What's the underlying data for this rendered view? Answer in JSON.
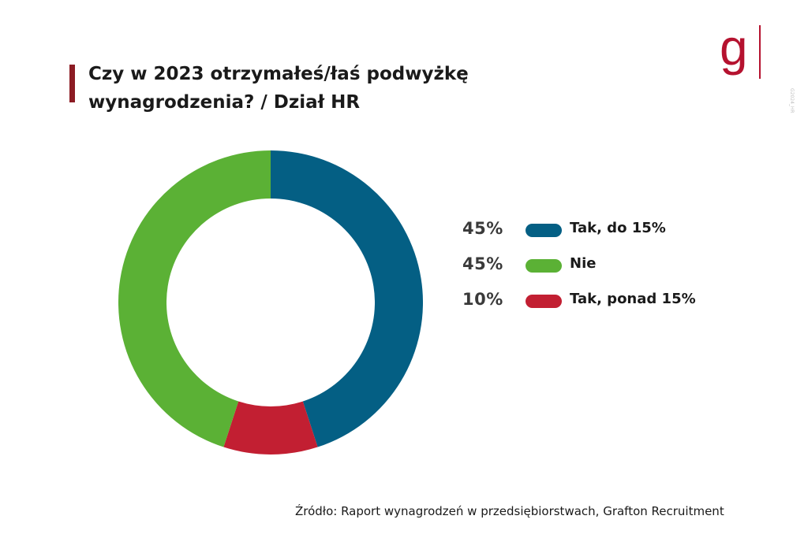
{
  "title": "Czy w 2023 otrzymałeś/łaś podwyżkę wynagrodzenia? / Dział HR",
  "logo": {
    "letter": "g",
    "color": "#b5122f"
  },
  "side_tag": "G2024_HR",
  "source": "Źródło: Raport wynagrodzeń w  przedsiębiorstwach, Grafton Recruitment",
  "chart_data": {
    "type": "pie",
    "donut": true,
    "title": "Czy w 2023 otrzymałeś/łaś podwyżkę wynagrodzenia? / Dział HR",
    "slices": [
      {
        "label": "Tak, do 15%",
        "value": 45,
        "display": "45%",
        "color": "#045f84"
      },
      {
        "label": "Tak, ponad 15%",
        "value": 10,
        "display": "10%",
        "color": "#c21f32"
      },
      {
        "label": "Nie",
        "value": 45,
        "display": "45%",
        "color": "#5bb135"
      }
    ],
    "legend": [
      {
        "pct": "45%",
        "label": "Tak, do 15%",
        "color": "#045f84"
      },
      {
        "pct": "45%",
        "label": "Nie",
        "color": "#5bb135"
      },
      {
        "pct": "10%",
        "label": "Tak, ponad 15%",
        "color": "#c21f32"
      }
    ],
    "legend_position": "right"
  }
}
